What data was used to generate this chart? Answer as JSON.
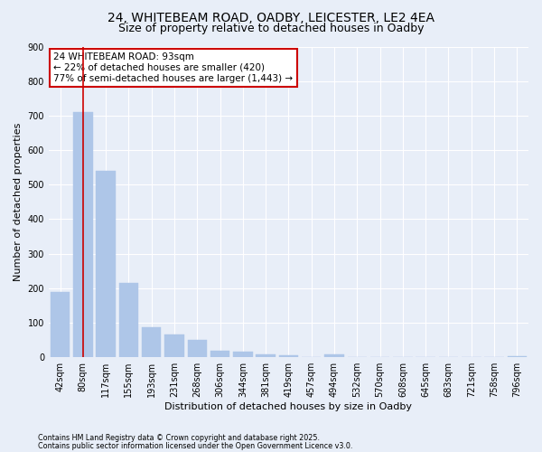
{
  "title_line1": "24, WHITEBEAM ROAD, OADBY, LEICESTER, LE2 4EA",
  "title_line2": "Size of property relative to detached houses in Oadby",
  "xlabel": "Distribution of detached houses by size in Oadby",
  "ylabel": "Number of detached properties",
  "footnote1": "Contains HM Land Registry data © Crown copyright and database right 2025.",
  "footnote2": "Contains public sector information licensed under the Open Government Licence v3.0.",
  "bar_labels": [
    "42sqm",
    "80sqm",
    "117sqm",
    "155sqm",
    "193sqm",
    "231sqm",
    "268sqm",
    "306sqm",
    "344sqm",
    "381sqm",
    "419sqm",
    "457sqm",
    "494sqm",
    "532sqm",
    "570sqm",
    "608sqm",
    "645sqm",
    "683sqm",
    "721sqm",
    "758sqm",
    "796sqm"
  ],
  "bar_values": [
    190,
    710,
    540,
    215,
    87,
    67,
    50,
    20,
    17,
    8,
    7,
    0,
    8,
    0,
    0,
    0,
    0,
    0,
    0,
    0,
    3
  ],
  "bar_color": "#aec6e8",
  "bar_edge_color": "#aec6e8",
  "vline_x": 1.0,
  "vline_color": "#cc0000",
  "annotation_text": "24 WHITEBEAM ROAD: 93sqm\n← 22% of detached houses are smaller (420)\n77% of semi-detached houses are larger (1,443) →",
  "annotation_box_edge": "#cc0000",
  "annotation_box_bg": "white",
  "ylim": [
    0,
    900
  ],
  "yticks": [
    0,
    100,
    200,
    300,
    400,
    500,
    600,
    700,
    800,
    900
  ],
  "background_color": "#e8eef8",
  "plot_bg_color": "#e8eef8",
  "grid_color": "white",
  "title_fontsize": 10,
  "subtitle_fontsize": 9,
  "axis_label_fontsize": 8,
  "tick_fontsize": 7,
  "annotation_fontsize": 7.5
}
